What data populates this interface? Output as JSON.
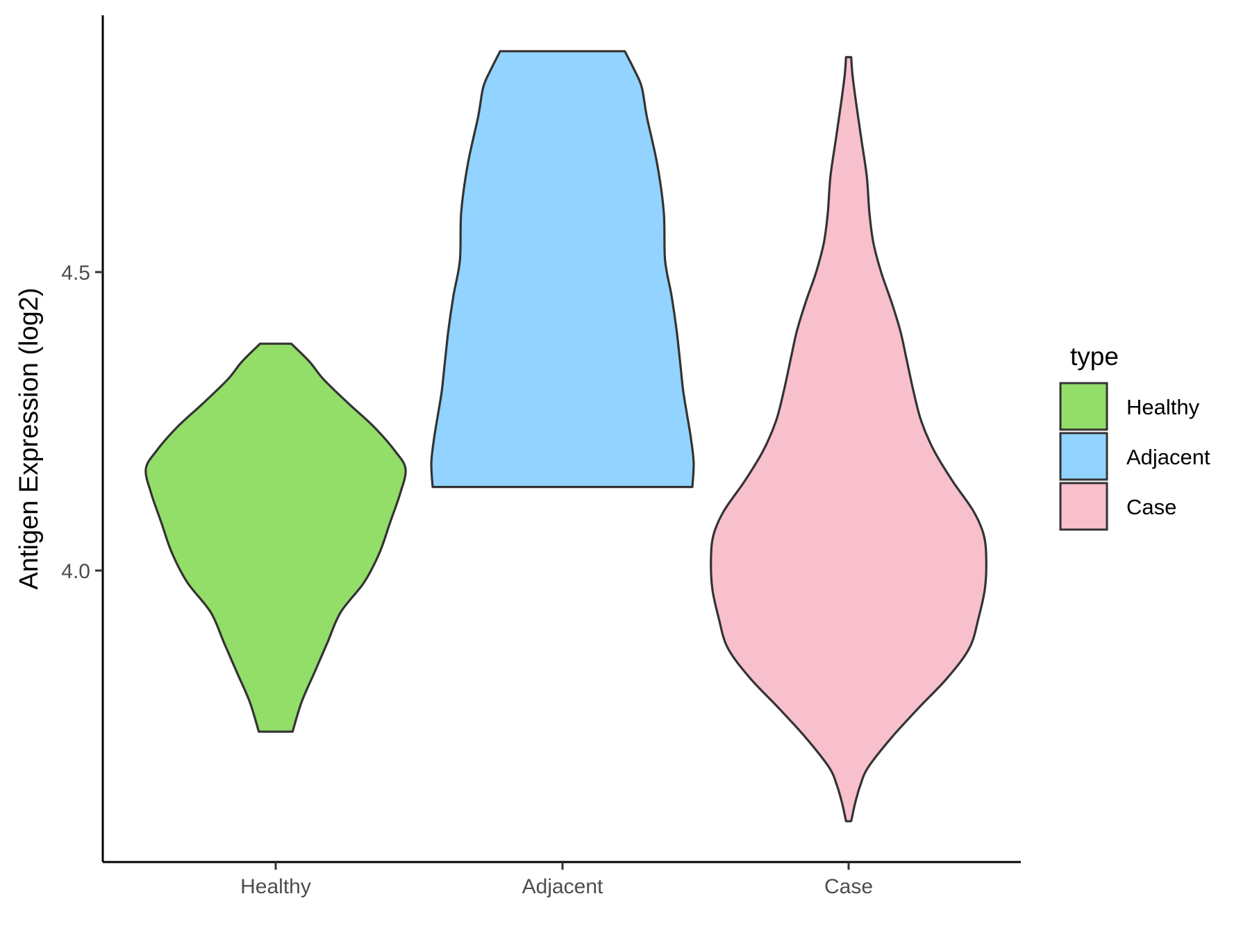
{
  "chart_data": {
    "type": "violin",
    "title": "",
    "xlabel": "",
    "ylabel": "Antigen Expression (log2)",
    "ylim": [
      3.52,
      4.93
    ],
    "yticks": [
      "4.0",
      "4.5"
    ],
    "categories": [
      "Healthy",
      "Adjacent",
      "Case"
    ],
    "grid": false,
    "legend": {
      "title": "type",
      "position": "right",
      "entries": [
        "Healthy",
        "Adjacent",
        "Case"
      ]
    },
    "series": [
      {
        "name": "Healthy",
        "color": "#93dd69",
        "min": 3.73,
        "max": 4.38,
        "density_profile": [
          [
            3.73,
            0.13
          ],
          [
            3.78,
            0.2
          ],
          [
            3.83,
            0.3
          ],
          [
            3.88,
            0.4
          ],
          [
            3.93,
            0.5
          ],
          [
            3.98,
            0.68
          ],
          [
            4.03,
            0.8
          ],
          [
            4.08,
            0.88
          ],
          [
            4.13,
            0.96
          ],
          [
            4.17,
            1.0
          ],
          [
            4.2,
            0.92
          ],
          [
            4.24,
            0.76
          ],
          [
            4.28,
            0.56
          ],
          [
            4.32,
            0.37
          ],
          [
            4.35,
            0.26
          ],
          [
            4.38,
            0.12
          ]
        ]
      },
      {
        "name": "Adjacent",
        "color": "#92d3ff",
        "min": 4.14,
        "max": 4.87,
        "density_profile": [
          [
            4.14,
            1.0
          ],
          [
            4.18,
            1.01
          ],
          [
            4.22,
            0.99
          ],
          [
            4.26,
            0.96
          ],
          [
            4.3,
            0.93
          ],
          [
            4.34,
            0.91
          ],
          [
            4.4,
            0.88
          ],
          [
            4.46,
            0.84
          ],
          [
            4.52,
            0.79
          ],
          [
            4.6,
            0.78
          ],
          [
            4.68,
            0.73
          ],
          [
            4.76,
            0.65
          ],
          [
            4.81,
            0.61
          ],
          [
            4.84,
            0.55
          ],
          [
            4.87,
            0.48
          ]
        ]
      },
      {
        "name": "Case",
        "color": "#f7c0cc",
        "min": 3.58,
        "max": 4.86,
        "density_profile": [
          [
            3.58,
            0.02
          ],
          [
            3.61,
            0.05
          ],
          [
            3.64,
            0.09
          ],
          [
            3.67,
            0.15
          ],
          [
            3.72,
            0.33
          ],
          [
            3.77,
            0.54
          ],
          [
            3.82,
            0.76
          ],
          [
            3.87,
            0.93
          ],
          [
            3.92,
            1.0
          ],
          [
            3.97,
            1.05
          ],
          [
            4.02,
            1.06
          ],
          [
            4.06,
            1.04
          ],
          [
            4.1,
            0.96
          ],
          [
            4.15,
            0.8
          ],
          [
            4.2,
            0.66
          ],
          [
            4.25,
            0.56
          ],
          [
            4.3,
            0.5
          ],
          [
            4.35,
            0.45
          ],
          [
            4.4,
            0.4
          ],
          [
            4.45,
            0.33
          ],
          [
            4.5,
            0.25
          ],
          [
            4.55,
            0.19
          ],
          [
            4.6,
            0.16
          ],
          [
            4.66,
            0.14
          ],
          [
            4.72,
            0.1
          ],
          [
            4.78,
            0.06
          ],
          [
            4.83,
            0.03
          ],
          [
            4.86,
            0.02
          ]
        ]
      }
    ]
  }
}
